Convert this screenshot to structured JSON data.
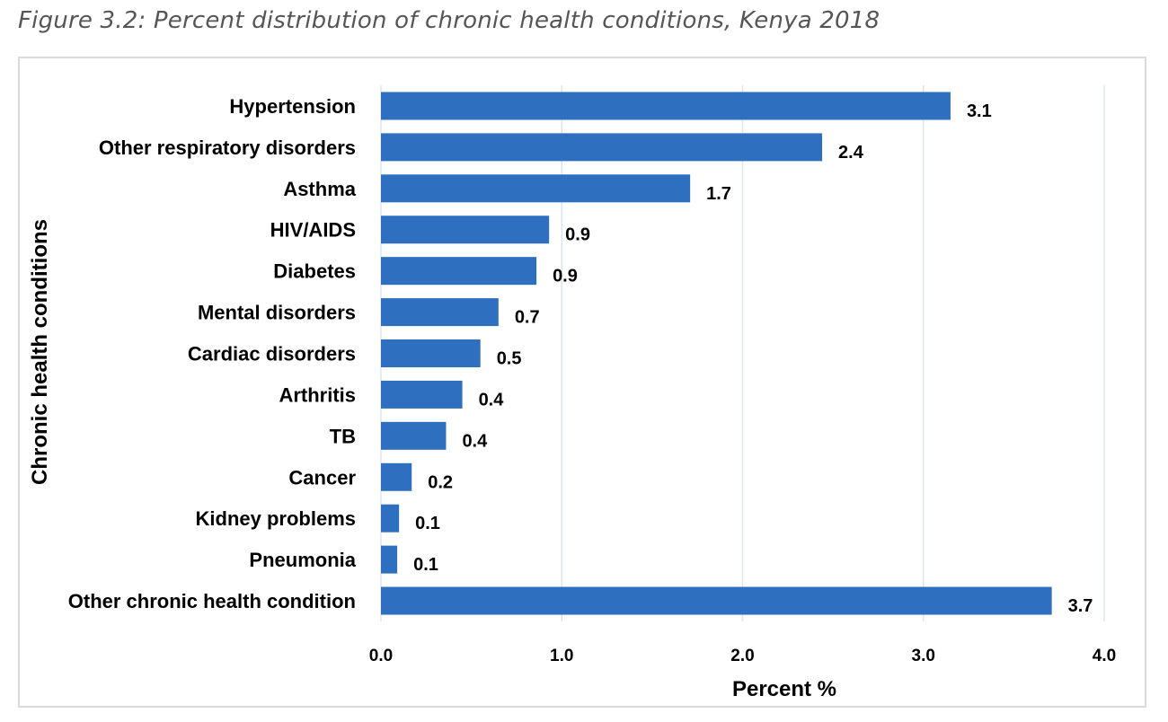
{
  "figure_caption": "Figure 3.2: Percent distribution of chronic health conditions, Kenya 2018",
  "colors": {
    "bar": "#2e6fbf",
    "grid": "#dde5ef",
    "frame": "#d9d9d9"
  },
  "chart_data": {
    "type": "bar",
    "orientation": "horizontal",
    "categories": [
      "Hypertension",
      "Other respiratory disorders",
      "Asthma",
      "HIV/AIDS",
      "Diabetes",
      "Mental disorders",
      "Cardiac disorders",
      "Arthritis",
      "TB",
      "Cancer",
      "Kidney problems",
      "Pneumonia",
      "Other chronic health condition"
    ],
    "values": [
      3.15,
      2.44,
      1.71,
      0.93,
      0.86,
      0.65,
      0.55,
      0.45,
      0.36,
      0.17,
      0.1,
      0.09,
      3.71
    ],
    "data_labels": [
      "3.1",
      "2.4",
      "1.7",
      "0.9",
      "0.9",
      "0.7",
      "0.5",
      "0.4",
      "0.4",
      "0.2",
      "0.1",
      "0.1",
      "3.7"
    ],
    "x_ticks": [
      "0.0",
      "1.0",
      "2.0",
      "3.0",
      "4.0"
    ],
    "xlim": [
      0,
      4
    ],
    "xlabel": "Percent %",
    "ylabel": "Chronic health conditions",
    "grid": "vertical",
    "legend": "none"
  }
}
